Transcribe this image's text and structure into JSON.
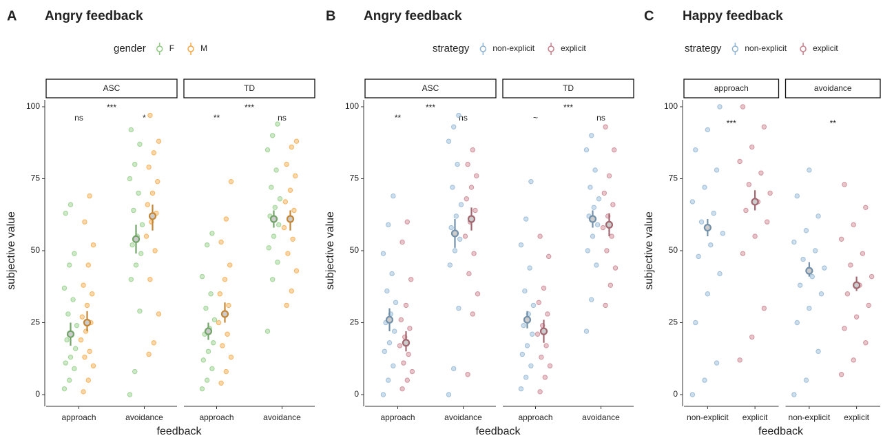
{
  "chart_data": [
    {
      "type": "beeswarm",
      "panel": "A",
      "title": "Angry feedback",
      "legend_title": "gender",
      "series": [
        {
          "name": "F",
          "color": "#8fcc82"
        },
        {
          "name": "M",
          "color": "#f5a742"
        }
      ],
      "ylabel": "subjective value",
      "xlabel": "feedback",
      "ylim": [
        0,
        100
      ],
      "yticks": [
        0,
        25,
        50,
        75,
        100
      ],
      "facets": [
        {
          "label": "ASC",
          "sig": "***",
          "categories": [
            {
              "label": "approach",
              "sig": "ns",
              "groups": [
                {
                  "mean": 21,
                  "ci": [
                    17,
                    25
                  ],
                  "values": [
                    2,
                    5,
                    9,
                    11,
                    13,
                    16,
                    19,
                    21,
                    24,
                    28,
                    33,
                    37,
                    45,
                    49,
                    63,
                    66
                  ]
                },
                {
                  "mean": 25,
                  "ci": [
                    22,
                    29
                  ],
                  "values": [
                    1,
                    5,
                    10,
                    13,
                    15,
                    19,
                    22,
                    25,
                    27,
                    31,
                    35,
                    38,
                    45,
                    52,
                    60,
                    69
                  ]
                }
              ]
            },
            {
              "label": "avoidance",
              "sig": "*",
              "groups": [
                {
                  "mean": 54,
                  "ci": [
                    49,
                    59
                  ],
                  "values": [
                    0,
                    8,
                    29,
                    40,
                    45,
                    49,
                    52,
                    55,
                    59,
                    64,
                    70,
                    75,
                    80,
                    87,
                    92
                  ]
                },
                {
                  "mean": 62,
                  "ci": [
                    57,
                    66
                  ],
                  "values": [
                    14,
                    18,
                    28,
                    40,
                    50,
                    55,
                    60,
                    63,
                    66,
                    70,
                    74,
                    79,
                    84,
                    88,
                    97
                  ]
                }
              ]
            }
          ]
        },
        {
          "label": "TD",
          "sig": "***",
          "categories": [
            {
              "label": "approach",
              "sig": "**",
              "groups": [
                {
                  "mean": 22,
                  "ci": [
                    19,
                    25
                  ],
                  "values": [
                    2,
                    5,
                    9,
                    12,
                    15,
                    18,
                    21,
                    23,
                    26,
                    30,
                    35,
                    41,
                    52,
                    56
                  ]
                },
                {
                  "mean": 28,
                  "ci": [
                    25,
                    32
                  ],
                  "values": [
                    4,
                    8,
                    13,
                    17,
                    21,
                    25,
                    28,
                    31,
                    35,
                    40,
                    45,
                    53,
                    61,
                    74
                  ]
                }
              ]
            },
            {
              "label": "avoidance",
              "sig": "ns",
              "groups": [
                {
                  "mean": 61,
                  "ci": [
                    58,
                    64
                  ],
                  "values": [
                    22,
                    40,
                    46,
                    51,
                    55,
                    59,
                    62,
                    65,
                    68,
                    72,
                    78,
                    85,
                    90,
                    94
                  ]
                },
                {
                  "mean": 61,
                  "ci": [
                    57,
                    64
                  ],
                  "values": [
                    31,
                    36,
                    43,
                    49,
                    54,
                    58,
                    61,
                    64,
                    67,
                    71,
                    76,
                    80,
                    86,
                    88
                  ]
                }
              ]
            }
          ]
        }
      ]
    },
    {
      "type": "beeswarm",
      "panel": "B",
      "title": "Angry feedback",
      "legend_title": "strategy",
      "series": [
        {
          "name": "non-explicit",
          "color": "#8fb4d3"
        },
        {
          "name": "explicit",
          "color": "#c97f8b"
        }
      ],
      "ylabel": "subjective value",
      "xlabel": "feedback",
      "ylim": [
        0,
        100
      ],
      "yticks": [
        0,
        25,
        50,
        75,
        100
      ],
      "facets": [
        {
          "label": "ASC",
          "sig": "***",
          "categories": [
            {
              "label": "approach",
              "sig": "**",
              "groups": [
                {
                  "mean": 26,
                  "ci": [
                    22,
                    30
                  ],
                  "values": [
                    0,
                    5,
                    10,
                    15,
                    18,
                    22,
                    25,
                    28,
                    32,
                    36,
                    42,
                    49,
                    59,
                    69
                  ]
                },
                {
                  "mean": 18,
                  "ci": [
                    15,
                    22
                  ],
                  "values": [
                    2,
                    5,
                    8,
                    11,
                    14,
                    17,
                    20,
                    23,
                    26,
                    31,
                    40,
                    53,
                    60
                  ]
                }
              ]
            },
            {
              "label": "avoidance",
              "sig": "ns",
              "groups": [
                {
                  "mean": 56,
                  "ci": [
                    51,
                    61
                  ],
                  "values": [
                    0,
                    9,
                    30,
                    45,
                    50,
                    54,
                    58,
                    62,
                    66,
                    72,
                    80,
                    88,
                    93,
                    97
                  ]
                },
                {
                  "mean": 61,
                  "ci": [
                    57,
                    65
                  ],
                  "values": [
                    7,
                    28,
                    35,
                    42,
                    49,
                    55,
                    60,
                    64,
                    68,
                    72,
                    76,
                    80,
                    85
                  ]
                }
              ]
            }
          ]
        },
        {
          "label": "TD",
          "sig": "***",
          "categories": [
            {
              "label": "approach",
              "sig": "~",
              "groups": [
                {
                  "mean": 26,
                  "ci": [
                    23,
                    29
                  ],
                  "values": [
                    2,
                    6,
                    10,
                    14,
                    17,
                    21,
                    24,
                    28,
                    31,
                    36,
                    44,
                    52,
                    61,
                    74
                  ]
                },
                {
                  "mean": 22,
                  "ci": [
                    18,
                    26
                  ],
                  "values": [
                    1,
                    6,
                    10,
                    13,
                    17,
                    21,
                    24,
                    28,
                    32,
                    37,
                    48,
                    55
                  ]
                }
              ]
            },
            {
              "label": "avoidance",
              "sig": "ns",
              "groups": [
                {
                  "mean": 61,
                  "ci": [
                    58,
                    64
                  ],
                  "values": [
                    22,
                    33,
                    45,
                    50,
                    55,
                    59,
                    62,
                    65,
                    68,
                    72,
                    78,
                    85,
                    90
                  ]
                },
                {
                  "mean": 59,
                  "ci": [
                    55,
                    63
                  ],
                  "values": [
                    31,
                    38,
                    44,
                    50,
                    55,
                    58,
                    62,
                    66,
                    70,
                    76,
                    85,
                    93
                  ]
                }
              ]
            }
          ]
        }
      ]
    },
    {
      "type": "beeswarm",
      "panel": "C",
      "title": "Happy feedback",
      "legend_title": "strategy",
      "series": [
        {
          "name": "non-explicit",
          "color": "#8fb4d3"
        },
        {
          "name": "explicit",
          "color": "#c97f8b"
        }
      ],
      "ylabel": "subjective value",
      "xlabel": "feedback",
      "ylim": [
        0,
        100
      ],
      "yticks": [
        0,
        25,
        50,
        75,
        100
      ],
      "facets": [
        {
          "label": "approach",
          "sig": "***",
          "categories": [
            {
              "label": "non-explicit",
              "groups": [
                {
                  "mean": 58,
                  "ci": [
                    55,
                    61
                  ],
                  "values": [
                    0,
                    5,
                    11,
                    25,
                    35,
                    42,
                    48,
                    52,
                    56,
                    60,
                    63,
                    67,
                    72,
                    78,
                    85,
                    92,
                    100
                  ]
                }
              ]
            },
            {
              "label": "explicit",
              "groups": [
                {
                  "mean": 67,
                  "ci": [
                    64,
                    71
                  ],
                  "values": [
                    12,
                    20,
                    30,
                    49,
                    55,
                    60,
                    64,
                    67,
                    70,
                    73,
                    77,
                    81,
                    86,
                    93,
                    100
                  ]
                }
              ]
            }
          ]
        },
        {
          "label": "avoidance",
          "sig": "**",
          "categories": [
            {
              "label": "non-explicit",
              "groups": [
                {
                  "mean": 43,
                  "ci": [
                    41,
                    46
                  ],
                  "values": [
                    0,
                    5,
                    15,
                    25,
                    30,
                    35,
                    38,
                    41,
                    44,
                    47,
                    50,
                    53,
                    57,
                    62,
                    69,
                    78
                  ]
                }
              ]
            },
            {
              "label": "explicit",
              "groups": [
                {
                  "mean": 38,
                  "ci": [
                    36,
                    41
                  ],
                  "values": [
                    7,
                    12,
                    18,
                    23,
                    27,
                    31,
                    35,
                    38,
                    41,
                    45,
                    49,
                    54,
                    59,
                    65,
                    73
                  ]
                }
              ]
            }
          ]
        }
      ]
    }
  ]
}
